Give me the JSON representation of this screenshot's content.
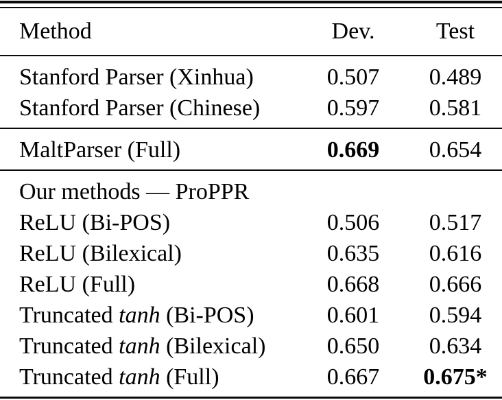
{
  "table": {
    "header": {
      "method": "Method",
      "dev": "Dev.",
      "test": "Test"
    },
    "groups": [
      {
        "rows": [
          {
            "method": [
              {
                "t": "Stanford Parser (Xinhua)"
              }
            ],
            "dev": "0.507",
            "test": "0.489"
          },
          {
            "method": [
              {
                "t": "Stanford Parser (Chinese)"
              }
            ],
            "dev": "0.597",
            "test": "0.581"
          }
        ]
      },
      {
        "rows": [
          {
            "method": [
              {
                "t": "MaltParser (Full)"
              }
            ],
            "dev": "0.669",
            "test": "0.654",
            "dev_bold": true
          }
        ]
      },
      {
        "rows": [
          {
            "method": [
              {
                "t": "Our methods — ProPPR"
              }
            ],
            "dev": "",
            "test": "",
            "section": true
          },
          {
            "method": [
              {
                "t": "ReLU (Bi-POS)"
              }
            ],
            "dev": "0.506",
            "test": "0.517"
          },
          {
            "method": [
              {
                "t": "ReLU (Bilexical)"
              }
            ],
            "dev": "0.635",
            "test": "0.616"
          },
          {
            "method": [
              {
                "t": "ReLU (Full)"
              }
            ],
            "dev": "0.668",
            "test": "0.666"
          },
          {
            "method": [
              {
                "t": "Truncated "
              },
              {
                "t": "tanh",
                "italic": true
              },
              {
                "t": " (Bi-POS)"
              }
            ],
            "dev": "0.601",
            "test": "0.594"
          },
          {
            "method": [
              {
                "t": "Truncated "
              },
              {
                "t": "tanh",
                "italic": true
              },
              {
                "t": " (Bilexical)"
              }
            ],
            "dev": "0.650",
            "test": "0.634"
          },
          {
            "method": [
              {
                "t": "Truncated "
              },
              {
                "t": "tanh",
                "italic": true
              },
              {
                "t": " (Full)"
              }
            ],
            "dev": "0.667",
            "test": "0.675*",
            "test_bold": true
          }
        ]
      }
    ]
  }
}
